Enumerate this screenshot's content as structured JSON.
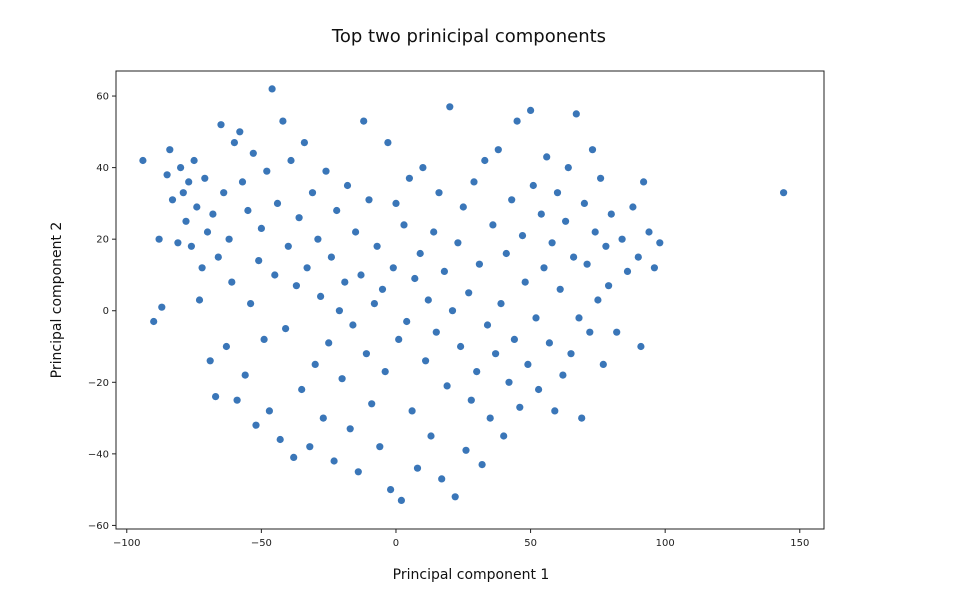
{
  "chart_data": {
    "type": "scatter",
    "title": "Top two prinicipal components",
    "xlabel": "Principal component 1",
    "ylabel": "Principal component 2",
    "xlim": [
      -104,
      159
    ],
    "ylim": [
      -61,
      67
    ],
    "xticks": [
      -100,
      -50,
      0,
      50,
      100,
      150
    ],
    "yticks": [
      -60,
      -40,
      -20,
      0,
      20,
      40,
      60
    ],
    "grid": false,
    "legend": "none",
    "marker_color": "#3a76b8",
    "series": [
      {
        "points": [
          [
            -94,
            42
          ],
          [
            -90,
            -3
          ],
          [
            -88,
            20
          ],
          [
            -87,
            1
          ],
          [
            -85,
            38
          ],
          [
            -84,
            45
          ],
          [
            -83,
            31
          ],
          [
            -81,
            19
          ],
          [
            -80,
            40
          ],
          [
            -79,
            33
          ],
          [
            -78,
            25
          ],
          [
            -77,
            36
          ],
          [
            -76,
            18
          ],
          [
            -75,
            42
          ],
          [
            -74,
            29
          ],
          [
            -73,
            3
          ],
          [
            -72,
            12
          ],
          [
            -71,
            37
          ],
          [
            -70,
            22
          ],
          [
            -69,
            -14
          ],
          [
            -68,
            27
          ],
          [
            -67,
            -24
          ],
          [
            -66,
            15
          ],
          [
            -65,
            52
          ],
          [
            -64,
            33
          ],
          [
            -63,
            -10
          ],
          [
            -62,
            20
          ],
          [
            -61,
            8
          ],
          [
            -60,
            47
          ],
          [
            -59,
            -25
          ],
          [
            -58,
            50
          ],
          [
            -57,
            36
          ],
          [
            -56,
            -18
          ],
          [
            -55,
            28
          ],
          [
            -54,
            2
          ],
          [
            -53,
            44
          ],
          [
            -52,
            -32
          ],
          [
            -51,
            14
          ],
          [
            -50,
            23
          ],
          [
            -49,
            -8
          ],
          [
            -48,
            39
          ],
          [
            -47,
            -28
          ],
          [
            -46,
            62
          ],
          [
            -45,
            10
          ],
          [
            -44,
            30
          ],
          [
            -43,
            -36
          ],
          [
            -42,
            53
          ],
          [
            -41,
            -5
          ],
          [
            -40,
            18
          ],
          [
            -39,
            42
          ],
          [
            -38,
            -41
          ],
          [
            -37,
            7
          ],
          [
            -36,
            26
          ],
          [
            -35,
            -22
          ],
          [
            -34,
            47
          ],
          [
            -33,
            12
          ],
          [
            -32,
            -38
          ],
          [
            -31,
            33
          ],
          [
            -30,
            -15
          ],
          [
            -29,
            20
          ],
          [
            -28,
            4
          ],
          [
            -27,
            -30
          ],
          [
            -26,
            39
          ],
          [
            -25,
            -9
          ],
          [
            -24,
            15
          ],
          [
            -23,
            -42
          ],
          [
            -22,
            28
          ],
          [
            -21,
            0
          ],
          [
            -20,
            -19
          ],
          [
            -19,
            8
          ],
          [
            -18,
            35
          ],
          [
            -17,
            -33
          ],
          [
            -16,
            -4
          ],
          [
            -15,
            22
          ],
          [
            -14,
            -45
          ],
          [
            -13,
            10
          ],
          [
            -12,
            53
          ],
          [
            -11,
            -12
          ],
          [
            -10,
            31
          ],
          [
            -9,
            -26
          ],
          [
            -8,
            2
          ],
          [
            -7,
            18
          ],
          [
            -6,
            -38
          ],
          [
            -5,
            6
          ],
          [
            -4,
            -17
          ],
          [
            -3,
            47
          ],
          [
            -2,
            -50
          ],
          [
            -1,
            12
          ],
          [
            0,
            30
          ],
          [
            1,
            -8
          ],
          [
            2,
            -53
          ],
          [
            3,
            24
          ],
          [
            4,
            -3
          ],
          [
            5,
            37
          ],
          [
            6,
            -28
          ],
          [
            7,
            9
          ],
          [
            8,
            -44
          ],
          [
            9,
            16
          ],
          [
            10,
            40
          ],
          [
            11,
            -14
          ],
          [
            12,
            3
          ],
          [
            13,
            -35
          ],
          [
            14,
            22
          ],
          [
            15,
            -6
          ],
          [
            16,
            33
          ],
          [
            17,
            -47
          ],
          [
            18,
            11
          ],
          [
            19,
            -21
          ],
          [
            20,
            57
          ],
          [
            21,
            0
          ],
          [
            22,
            -52
          ],
          [
            23,
            19
          ],
          [
            24,
            -10
          ],
          [
            25,
            29
          ],
          [
            26,
            -39
          ],
          [
            27,
            5
          ],
          [
            28,
            -25
          ],
          [
            29,
            36
          ],
          [
            30,
            -17
          ],
          [
            31,
            13
          ],
          [
            32,
            -43
          ],
          [
            33,
            42
          ],
          [
            34,
            -4
          ],
          [
            35,
            -30
          ],
          [
            36,
            24
          ],
          [
            37,
            -12
          ],
          [
            38,
            45
          ],
          [
            39,
            2
          ],
          [
            40,
            -35
          ],
          [
            41,
            16
          ],
          [
            42,
            -20
          ],
          [
            43,
            31
          ],
          [
            44,
            -8
          ],
          [
            45,
            53
          ],
          [
            46,
            -27
          ],
          [
            47,
            21
          ],
          [
            48,
            8
          ],
          [
            49,
            -15
          ],
          [
            50,
            56
          ],
          [
            51,
            35
          ],
          [
            52,
            -2
          ],
          [
            53,
            -22
          ],
          [
            54,
            27
          ],
          [
            55,
            12
          ],
          [
            56,
            43
          ],
          [
            57,
            -9
          ],
          [
            58,
            19
          ],
          [
            59,
            -28
          ],
          [
            60,
            33
          ],
          [
            61,
            6
          ],
          [
            62,
            -18
          ],
          [
            63,
            25
          ],
          [
            64,
            40
          ],
          [
            65,
            -12
          ],
          [
            66,
            15
          ],
          [
            67,
            55
          ],
          [
            68,
            -2
          ],
          [
            69,
            -30
          ],
          [
            70,
            30
          ],
          [
            71,
            13
          ],
          [
            72,
            -6
          ],
          [
            73,
            45
          ],
          [
            74,
            22
          ],
          [
            75,
            3
          ],
          [
            76,
            37
          ],
          [
            77,
            -15
          ],
          [
            78,
            18
          ],
          [
            79,
            7
          ],
          [
            80,
            27
          ],
          [
            82,
            -6
          ],
          [
            84,
            20
          ],
          [
            86,
            11
          ],
          [
            88,
            29
          ],
          [
            90,
            15
          ],
          [
            91,
            -10
          ],
          [
            92,
            36
          ],
          [
            94,
            22
          ],
          [
            96,
            12
          ],
          [
            98,
            19
          ],
          [
            144,
            33
          ]
        ]
      }
    ]
  }
}
